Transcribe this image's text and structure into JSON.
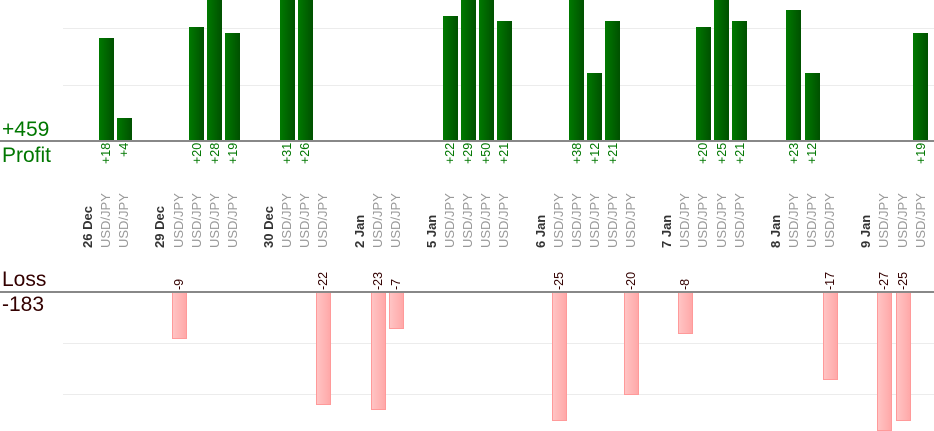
{
  "summary": {
    "profit_total": "+459",
    "profit_label": "Profit",
    "loss_label": "Loss",
    "loss_total": "-183"
  },
  "colors": {
    "profit": "#006600",
    "profit_text": "#007700",
    "loss": "#ffaaaa",
    "loss_text": "#330000",
    "pair_text": "#999999",
    "date_text": "#333333"
  },
  "chart_data": {
    "type": "bar",
    "profit_grid_step": 10,
    "loss_grid_step": 10,
    "days": [
      {
        "date": "26 Dec",
        "trades": [
          {
            "pair": "USD/JPY",
            "pnl": 18
          },
          {
            "pair": "USD/JPY",
            "pnl": 4
          }
        ]
      },
      {
        "date": "29 Dec",
        "trades": [
          {
            "pair": "USD/JPY",
            "pnl": -9
          },
          {
            "pair": "USD/JPY",
            "pnl": 20
          },
          {
            "pair": "USD/JPY",
            "pnl": 28
          },
          {
            "pair": "USD/JPY",
            "pnl": 19
          }
        ]
      },
      {
        "date": "30 Dec",
        "trades": [
          {
            "pair": "USD/JPY",
            "pnl": 31
          },
          {
            "pair": "USD/JPY",
            "pnl": 26
          },
          {
            "pair": "USD/JPY",
            "pnl": -22
          }
        ]
      },
      {
        "date": "2 Jan",
        "trades": [
          {
            "pair": "USD/JPY",
            "pnl": -23
          },
          {
            "pair": "USD/JPY",
            "pnl": -7
          }
        ]
      },
      {
        "date": "5 Jan",
        "trades": [
          {
            "pair": "USD/JPY",
            "pnl": 22
          },
          {
            "pair": "USD/JPY",
            "pnl": 29
          },
          {
            "pair": "USD/JPY",
            "pnl": 50
          },
          {
            "pair": "USD/JPY",
            "pnl": 21
          }
        ]
      },
      {
        "date": "6 Jan",
        "trades": [
          {
            "pair": "USD/JPY",
            "pnl": -25
          },
          {
            "pair": "USD/JPY",
            "pnl": 38
          },
          {
            "pair": "USD/JPY",
            "pnl": 12
          },
          {
            "pair": "USD/JPY",
            "pnl": 21
          },
          {
            "pair": "USD/JPY",
            "pnl": -20
          }
        ]
      },
      {
        "date": "7 Jan",
        "trades": [
          {
            "pair": "USD/JPY",
            "pnl": -8
          },
          {
            "pair": "USD/JPY",
            "pnl": 20
          },
          {
            "pair": "USD/JPY",
            "pnl": 25
          },
          {
            "pair": "USD/JPY",
            "pnl": 21
          }
        ]
      },
      {
        "date": "8 Jan",
        "trades": [
          {
            "pair": "USD/JPY",
            "pnl": 23
          },
          {
            "pair": "USD/JPY",
            "pnl": 12
          },
          {
            "pair": "USD/JPY",
            "pnl": -17
          }
        ]
      },
      {
        "date": "9 Jan",
        "trades": [
          {
            "pair": "USD/JPY",
            "pnl": -27
          },
          {
            "pair": "USD/JPY",
            "pnl": -25
          },
          {
            "pair": "USD/JPY",
            "pnl": 19
          }
        ]
      }
    ]
  }
}
